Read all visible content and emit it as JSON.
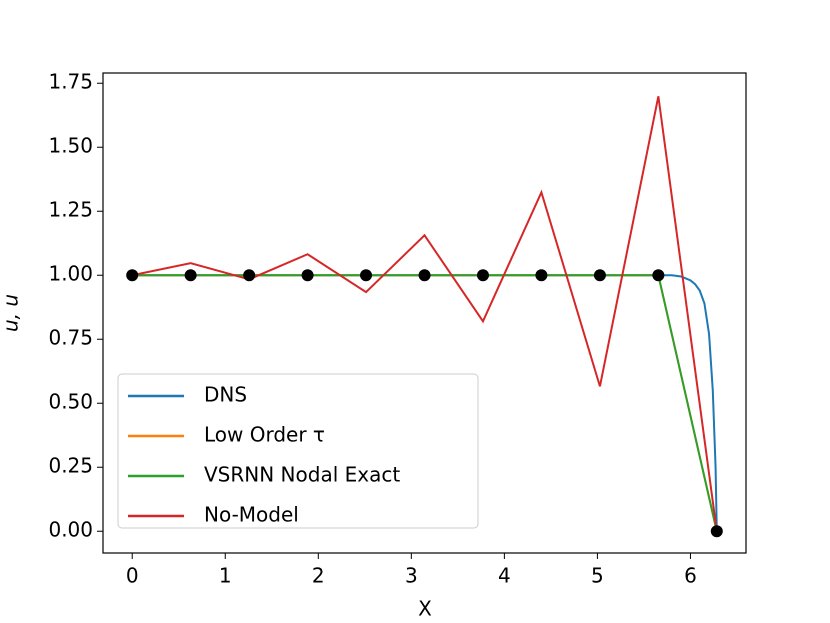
{
  "chart_data": {
    "type": "line",
    "xlabel": "X",
    "ylabel": "u, u",
    "xlim": [
      -0.314,
      6.597
    ],
    "ylim": [
      -0.085,
      1.79
    ],
    "xticks": [
      0,
      1,
      2,
      3,
      4,
      5,
      6
    ],
    "yticks": [
      {
        "value": 0,
        "label": "0.00"
      },
      {
        "value": 0.25,
        "label": "0.25"
      },
      {
        "value": 0.5,
        "label": "0.50"
      },
      {
        "value": 0.75,
        "label": "0.75"
      },
      {
        "value": 1,
        "label": "1.00"
      },
      {
        "value": 1.25,
        "label": "1.25"
      },
      {
        "value": 1.5,
        "label": "1.50"
      },
      {
        "value": 1.75,
        "label": "1.75"
      }
    ],
    "legend": "lower left",
    "series": [
      {
        "name": "DNS",
        "color": "#1f77b4",
        "x": [
          0,
          5.5,
          5.8,
          5.9,
          6.0,
          6.05,
          6.1,
          6.15,
          6.2,
          6.24,
          6.27,
          6.283
        ],
        "values": [
          1,
          1,
          1,
          0.995,
          0.98,
          0.965,
          0.94,
          0.89,
          0.77,
          0.55,
          0.25,
          0
        ]
      },
      {
        "name": "Low Order τ",
        "color": "#ff7f0e",
        "x": [
          0,
          0.628,
          1.257,
          1.885,
          2.513,
          3.142,
          3.77,
          4.398,
          5.027,
          5.655,
          6.283
        ],
        "values": [
          1,
          1,
          1,
          1,
          1,
          1,
          1,
          1,
          1,
          1,
          0
        ]
      },
      {
        "name": "VSRNN Nodal Exact",
        "color": "#2ca02c",
        "x": [
          0,
          0.628,
          1.257,
          1.885,
          2.513,
          3.142,
          3.77,
          4.398,
          5.027,
          5.655,
          6.283
        ],
        "values": [
          1,
          1,
          1,
          1,
          1,
          1,
          1,
          1,
          1,
          1,
          0
        ]
      },
      {
        "name": "No-Model",
        "color": "#d62728",
        "x": [
          0,
          0.628,
          1.257,
          1.885,
          2.513,
          3.142,
          3.77,
          4.398,
          5.027,
          5.655,
          6.283
        ],
        "values": [
          1,
          1.047,
          0.984,
          1.082,
          0.934,
          1.156,
          0.82,
          1.324,
          0.566,
          1.699,
          0
        ]
      }
    ],
    "points": {
      "color": "#000000",
      "x": [
        0,
        0.628,
        1.257,
        1.885,
        2.513,
        3.142,
        3.77,
        4.398,
        5.027,
        5.655,
        6.283
      ],
      "values": [
        1,
        1,
        1,
        1,
        1,
        1,
        1,
        1,
        1,
        1,
        0
      ]
    }
  }
}
